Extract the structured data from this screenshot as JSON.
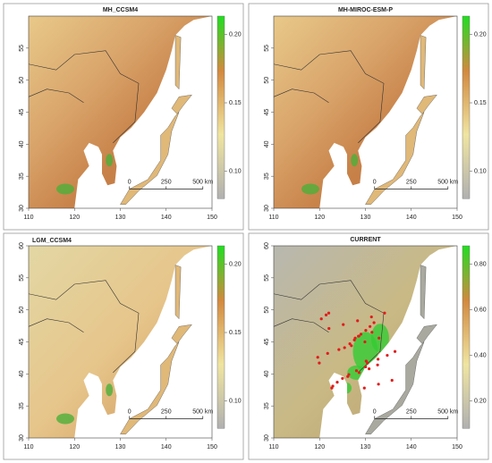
{
  "panels": [
    {
      "title": "MH_CCSM4",
      "x_ticks": [
        "110",
        "120",
        "130",
        "140",
        "150"
      ],
      "y_ticks": [
        "30",
        "35",
        "40",
        "45",
        "50",
        "55"
      ],
      "legend_ticks": [
        "0.10",
        "0.15",
        "0.20"
      ],
      "scale_bar": [
        "0",
        "250",
        "500 km"
      ]
    },
    {
      "title": "MH-MIROC-ESM-P",
      "x_ticks": [
        "110",
        "120",
        "130",
        "140",
        "150"
      ],
      "y_ticks": [
        "30",
        "35",
        "40",
        "45",
        "50",
        "55"
      ],
      "legend_ticks": [
        "0.10",
        "0.15",
        "0.20"
      ],
      "scale_bar": [
        "0",
        "250",
        "500 km"
      ]
    },
    {
      "title": "LGM_CCSM4",
      "x_ticks": [
        "110",
        "120",
        "130",
        "140",
        "150"
      ],
      "y_ticks": [
        "30",
        "35",
        "40",
        "45",
        "50",
        "55",
        "60"
      ],
      "legend_ticks": [
        "0.10",
        "0.15",
        "0.20"
      ],
      "scale_bar": [
        "0",
        "250",
        "500 km"
      ]
    },
    {
      "title": "CURRENT",
      "x_ticks": [
        "110",
        "120",
        "130",
        "140",
        "150"
      ],
      "y_ticks": [
        "30",
        "35",
        "40",
        "45",
        "50",
        "55",
        "60"
      ],
      "legend_ticks": [
        "0.20",
        "0.40",
        "0.60",
        "0.80"
      ],
      "scale_bar": [
        "0",
        "250",
        "500 km"
      ]
    }
  ]
}
